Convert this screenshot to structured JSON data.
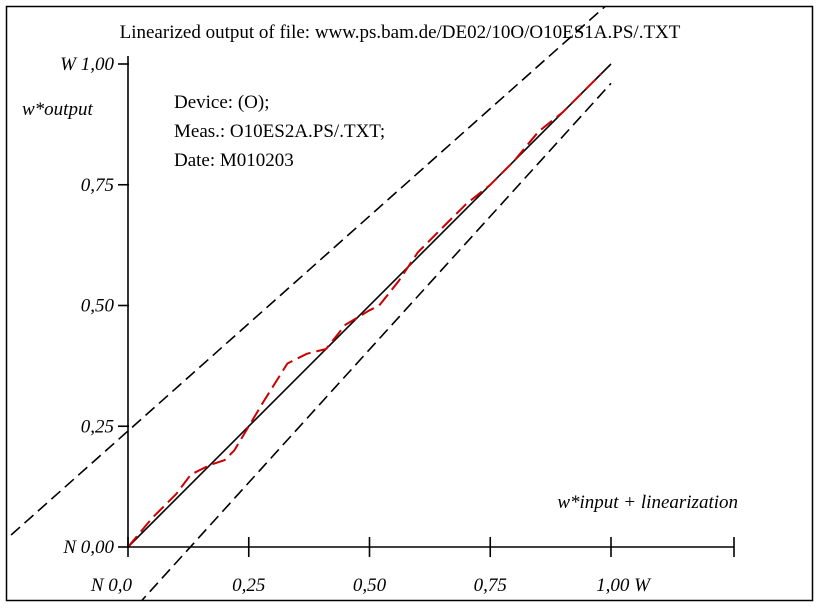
{
  "chart_data": {
    "type": "line",
    "title": "Linearized output of file: www.ps.bam.de/DE02/10O/O10ES1A.PS/.TXT",
    "ylabel": "w*output",
    "xlabel": "w*input + linearization",
    "info_lines": [
      "Device: (O);",
      "Meas.: O10ES2A.PS/.TXT;",
      "Date: M010203"
    ],
    "xlim": [
      0,
      1
    ],
    "ylim": [
      0,
      1
    ],
    "x_ticks": [
      {
        "value": 0,
        "label": "N  0,0"
      },
      {
        "value": 0.25,
        "label": "0,25"
      },
      {
        "value": 0.5,
        "label": "0,50"
      },
      {
        "value": 0.75,
        "label": "0,75"
      },
      {
        "value": 1,
        "label": "1,00  W"
      }
    ],
    "y_ticks": [
      {
        "value": 0,
        "label": "N 0,00"
      },
      {
        "value": 0.25,
        "label": "0,25"
      },
      {
        "value": 0.5,
        "label": "0,50"
      },
      {
        "value": 0.75,
        "label": "0,75"
      },
      {
        "value": 1,
        "label": "W 1,00"
      }
    ],
    "grid": false,
    "series": [
      {
        "style": "solid",
        "color": "#000000",
        "x": [
          0,
          1
        ],
        "y": [
          0,
          1
        ]
      },
      {
        "style": "dashed",
        "color": "#000000",
        "x": [
          -0.27,
          1
        ],
        "y": [
          0,
          1.13
        ]
      },
      {
        "style": "dashed",
        "color": "#000000",
        "x": [
          0.02,
          1
        ],
        "y": [
          -0.12,
          0.96
        ]
      },
      {
        "style": "dashed",
        "color": "#cc0000",
        "x": [
          0,
          0.05,
          0.1,
          0.13,
          0.17,
          0.2,
          0.22,
          0.25,
          0.28,
          0.33,
          0.37,
          0.41,
          0.45,
          0.5,
          0.52,
          0.56,
          0.6,
          0.65,
          0.7,
          0.75,
          0.8,
          0.85,
          0.9,
          0.95,
          0.98
        ],
        "y": [
          0,
          0.06,
          0.11,
          0.15,
          0.17,
          0.18,
          0.2,
          0.25,
          0.3,
          0.38,
          0.4,
          0.41,
          0.46,
          0.49,
          0.5,
          0.55,
          0.61,
          0.66,
          0.71,
          0.75,
          0.8,
          0.86,
          0.9,
          0.95,
          0.98
        ]
      }
    ]
  }
}
